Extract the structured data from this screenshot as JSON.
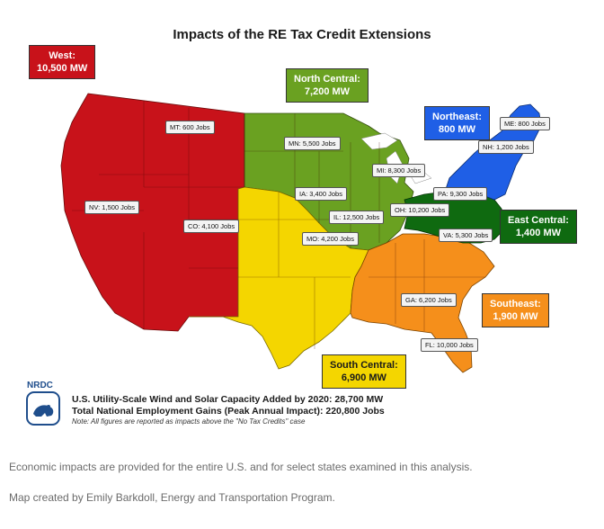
{
  "title": "Impacts of the RE Tax Credit Extensions",
  "regions": {
    "west": {
      "name": "West:",
      "value": "10,500 MW",
      "color": "#c8121a"
    },
    "north_central": {
      "name": "North Central:",
      "value": "7,200 MW",
      "color": "#6aa121"
    },
    "northeast": {
      "name": "Northeast:",
      "value": "800 MW",
      "color": "#1f5fe6"
    },
    "east_central": {
      "name": "East Central:",
      "value": "1,400 MW",
      "color": "#0f6a10"
    },
    "southeast": {
      "name": "Southeast:",
      "value": "1,900 MW",
      "color": "#f58f1b"
    },
    "south_central": {
      "name": "South Central:",
      "value": "6,900 MW",
      "color": "#f4d600"
    }
  },
  "jobs": {
    "mt": "MT: 600 Jobs",
    "mn": "MN: 5,500 Jobs",
    "me": "ME: 800 Jobs",
    "nh": "NH: 1,200 Jobs",
    "mi": "MI: 8,300 Jobs",
    "ia": "IA: 3,400 Jobs",
    "pa": "PA: 9,300 Jobs",
    "nv": "NV: 1,500 Jobs",
    "co": "CO: 4,100 Jobs",
    "il": "IL: 12,500 Jobs",
    "oh": "OH: 10,200 Jobs",
    "mo": "MO: 4,200 Jobs",
    "va": "VA: 5,300 Jobs",
    "ga": "GA: 6,200 Jobs",
    "fl": "FL: 10,000 Jobs"
  },
  "logo": "NRDC",
  "totals": {
    "capacity": "U.S. Utility-Scale Wind and Solar Capacity Added by 2020: 28,700 MW",
    "employment": "Total National Employment Gains (Peak Annual Impact): 220,800 Jobs",
    "note": "Note: All figures are reported as impacts above the \"No Tax Credits\" case"
  },
  "captions": {
    "line1": "Economic impacts are provided for the entire U.S. and for select states examined in this analysis.",
    "line2": "Map created by Emily Barkdoll, Energy and Transportation Program."
  }
}
